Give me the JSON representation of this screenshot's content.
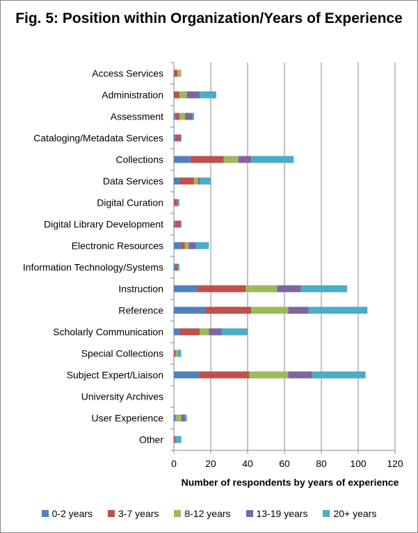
{
  "chart_data": {
    "type": "bar",
    "orientation": "horizontal",
    "stacked": true,
    "title": "Fig. 5: Position within Organization/Years of Experience",
    "xlabel": "Number of respondents by years of experience",
    "ylabel": "",
    "xlim": [
      0,
      120
    ],
    "xticks": [
      "0",
      "20",
      "40",
      "60",
      "80",
      "100",
      "120"
    ],
    "grid": "vertical",
    "legend_position": "bottom",
    "categories": [
      "Access Services",
      "Administration",
      "Assessment",
      "Cataloging/Metadata Services",
      "Collections",
      "Data Services",
      "Digital Curation",
      "Digital Library Development",
      "Electronic Resources",
      "Information Technology/Systems",
      "Instruction",
      "Reference",
      "Scholarly Communication",
      "Special Collections",
      "Subject Expert/Liaison",
      "University Archives",
      "User Experience",
      "Other"
    ],
    "series": [
      {
        "name": "0-2 years",
        "color": "#4F81BD",
        "values": [
          0,
          0,
          1,
          1,
          9,
          3,
          0,
          1,
          4,
          1,
          13,
          17,
          3,
          0,
          14,
          0,
          1,
          0
        ]
      },
      {
        "name": "3-7 years",
        "color": "#C0504D",
        "values": [
          2,
          3,
          2,
          2,
          18,
          8,
          2,
          2,
          2,
          1,
          26,
          25,
          11,
          1,
          27,
          0,
          0,
          1
        ]
      },
      {
        "name": "8-12 years",
        "color": "#9BBB59",
        "values": [
          2,
          4,
          3,
          0,
          8,
          2,
          0,
          0,
          2,
          0,
          17,
          20,
          5,
          1,
          21,
          0,
          3,
          0
        ]
      },
      {
        "name": "13-19 years",
        "color": "#8064A2",
        "values": [
          0,
          7,
          4,
          1,
          7,
          1,
          0,
          1,
          4,
          0,
          13,
          11,
          7,
          0,
          13,
          0,
          2,
          0
        ]
      },
      {
        "name": "20+ years",
        "color": "#4BACC6",
        "values": [
          0,
          9,
          1,
          0,
          23,
          6,
          1,
          0,
          7,
          1,
          25,
          32,
          14,
          2,
          29,
          0,
          1,
          3
        ]
      }
    ]
  }
}
